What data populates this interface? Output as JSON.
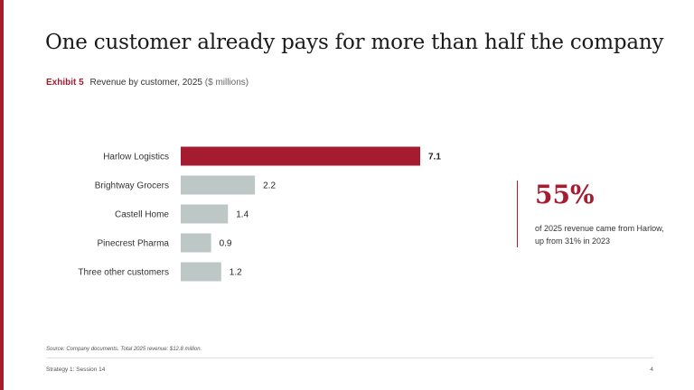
{
  "slide": {
    "title": "One customer already pays for more than half the company",
    "exhibit_label": "Exhibit 5",
    "subtitle": "Revenue by customer, 2025",
    "units": "($ millions)",
    "source": "Source: Company documents. Total 2025 revenue: $12.8 million.",
    "footer_left": "Strategy 1: Session 14",
    "page_number": "4"
  },
  "callout": {
    "value": "55%",
    "text": "of 2025 revenue came from Harlow, up from 31% in 2023"
  },
  "colors": {
    "accent": "#a51c30",
    "muted_bar": "#bdc7c6"
  },
  "chart_data": {
    "type": "bar",
    "orientation": "horizontal",
    "categories": [
      "Harlow Logistics",
      "Brightway Grocers",
      "Castell Home",
      "Pinecrest Pharma",
      "Three other customers"
    ],
    "values": [
      7.1,
      2.2,
      1.4,
      0.9,
      1.2
    ],
    "value_labels": [
      "7.1",
      "2.2",
      "1.4",
      "0.9",
      "1.2"
    ],
    "highlight_index": 0,
    "xlim": [
      0,
      7.1
    ],
    "grid": false,
    "legend": false
  }
}
